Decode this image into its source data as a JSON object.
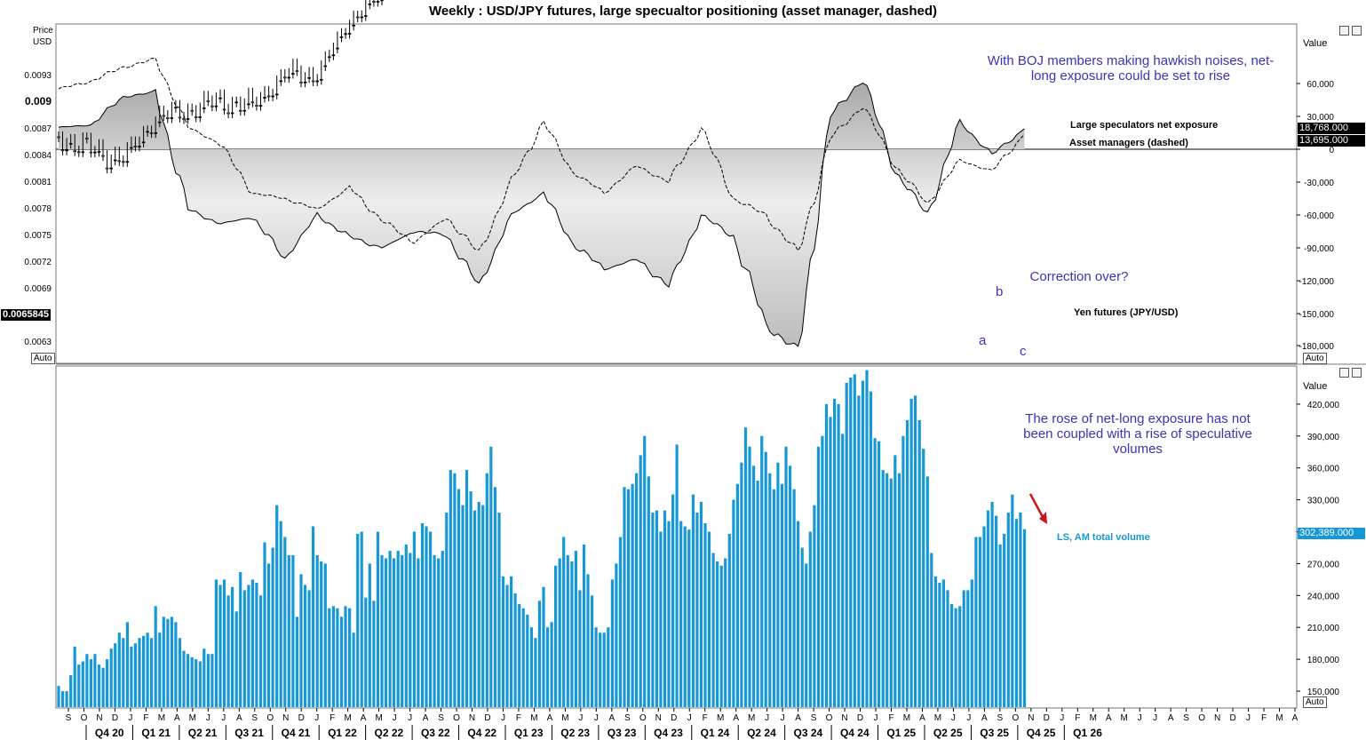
{
  "title": "Weekly : USD/JPY futures, large specualtor positioning (asset manager, dashed)",
  "colors": {
    "volume_bar": "#1798d6",
    "arrow": "#c8161d",
    "annotation": "#3a33b8",
    "tag_black": "#000000",
    "tag_blue": "#1798d6"
  },
  "top_panel": {
    "left_axis_title": [
      "Price",
      "USD"
    ],
    "left_ticks": [
      "0.0093",
      "0.009",
      "0.0087",
      "0.0084",
      "0.0081",
      "0.0078",
      "0.0075",
      "0.0072",
      "0.0069",
      "0.0063"
    ],
    "right_axis_title": "Value",
    "right_ticks": [
      "60,000",
      "30,000",
      "0",
      "-30,000",
      "-60,000",
      "-90,000",
      "-120,000",
      "-150,000",
      "-180,000"
    ],
    "price_tag": "0.0065845",
    "ls_tag": "18,768.000",
    "am_tag": "13,695.000",
    "auto_label": "Auto",
    "annotation": "With BOJ members making hawkish noises, net-long exposure could be set to rise",
    "question": "Correction over?",
    "label_ls": "Large speculators net exposure",
    "label_am": "Asset managers (dashed)",
    "label_yen": "Yen futures (JPY/USD)",
    "wave_a": "a",
    "wave_b": "b",
    "wave_c": "c"
  },
  "bottom_panel": {
    "right_axis_title": "Value",
    "right_ticks": [
      "420,000",
      "390,000",
      "360,000",
      "330,000",
      "300,000",
      "270,000",
      "240,000",
      "210,000",
      "180,000",
      "150,000"
    ],
    "volume_tag": "302,389.000",
    "label_volume": "LS, AM total volume",
    "annotation": "The rose of net-long exposure has not been coupled with a rise of speculative volumes",
    "auto_label": "Auto"
  },
  "x_axis": {
    "months": [
      "S",
      "O",
      "N",
      "D",
      "J",
      "F",
      "M",
      "A",
      "M",
      "J",
      "J",
      "A",
      "S",
      "O",
      "N",
      "D",
      "J",
      "F",
      "M",
      "A",
      "M",
      "J",
      "J",
      "A",
      "S",
      "O",
      "N",
      "D",
      "J",
      "F",
      "M",
      "A",
      "M",
      "J",
      "J",
      "A",
      "S",
      "O",
      "N",
      "D",
      "J",
      "F",
      "M",
      "A",
      "M",
      "J",
      "J",
      "A",
      "S",
      "O",
      "N",
      "D",
      "J",
      "F",
      "M",
      "A",
      "M",
      "J",
      "J",
      "A",
      "S",
      "O",
      "N",
      "D",
      "J",
      "F",
      "M",
      "A",
      "M",
      "J",
      "J",
      "A",
      "S",
      "O",
      "N",
      "D",
      "J",
      "F",
      "M",
      "A"
    ],
    "quarters": [
      "Q4 20",
      "Q1 21",
      "Q2 21",
      "Q3 21",
      "Q4 21",
      "Q1 22",
      "Q2 22",
      "Q3 22",
      "Q4 22",
      "Q1 23",
      "Q2 23",
      "Q3 23",
      "Q4 23",
      "Q1 24",
      "Q2 24",
      "Q3 24",
      "Q4 24",
      "Q1 25",
      "Q2 25",
      "Q3 25",
      "Q4 25",
      "Q1 26"
    ]
  },
  "chart_data": [
    {
      "type": "line",
      "title": "Weekly : USD/JPY futures, large specualtor positioning (asset manager, dashed)",
      "x": [
        "2020-09",
        "2020-11",
        "2021-01",
        "2021-03",
        "2021-05",
        "2021-07",
        "2021-09",
        "2021-11",
        "2022-01",
        "2022-03",
        "2022-05",
        "2022-07",
        "2022-09",
        "2022-11",
        "2023-01",
        "2023-03",
        "2023-05",
        "2023-07",
        "2023-09",
        "2023-11",
        "2024-01",
        "2024-03",
        "2024-05",
        "2024-07",
        "2024-08",
        "2024-09",
        "2024-10",
        "2024-11",
        "2024-12",
        "2025-01",
        "2025-02"
      ],
      "y_right_label": "Value",
      "series": [
        {
          "name": "Large speculators net exposure",
          "axis": "right",
          "values": [
            20000,
            22000,
            48000,
            52000,
            -55000,
            -68000,
            -62000,
            -100000,
            -60000,
            -80000,
            -90000,
            -75000,
            -78000,
            -125000,
            -60000,
            -40000,
            -85000,
            -110000,
            -100000,
            -125000,
            -60000,
            -80000,
            -160000,
            -185000,
            30000,
            65000,
            -20000,
            -60000,
            25000,
            -5000,
            18768
          ]
        },
        {
          "name": "Asset managers (dashed)",
          "axis": "right",
          "values": [
            55000,
            62000,
            75000,
            82000,
            20000,
            5000,
            -40000,
            -45000,
            -55000,
            -35000,
            -65000,
            -85000,
            -62000,
            -95000,
            -30000,
            25000,
            -20000,
            -40000,
            -15000,
            -30000,
            20000,
            -45000,
            -60000,
            -95000,
            10000,
            40000,
            -15000,
            -50000,
            -10000,
            -20000,
            13695
          ]
        },
        {
          "name": "Yen futures (JPY/USD)",
          "axis": "left",
          "values": [
            0.0094,
            0.00955,
            0.00965,
            0.0092,
            0.0091,
            0.009,
            0.00905,
            0.0087,
            0.0087,
            0.0081,
            0.0078,
            0.0073,
            0.0073,
            0.0069,
            0.0077,
            0.0075,
            0.0073,
            0.007,
            0.0069,
            0.0067,
            0.007,
            0.0068,
            0.0065,
            0.0063,
            0.007,
            0.007,
            0.0067,
            0.0065,
            0.00665,
            0.0064,
            0.0065845
          ]
        }
      ]
    },
    {
      "type": "bar",
      "y_right_label": "Value",
      "ylim": [
        135000,
        445000
      ],
      "series": [
        {
          "name": "LS, AM total volume",
          "values": [
            155000,
            150000,
            150000,
            165000,
            192000,
            175000,
            178000,
            185000,
            180000,
            185000,
            175000,
            172000,
            180000,
            190000,
            195000,
            205000,
            200000,
            215000,
            192000,
            195000,
            200000,
            202000,
            205000,
            200000,
            230000,
            205000,
            220000,
            218000,
            220000,
            215000,
            200000,
            188000,
            185000,
            182000,
            180000,
            178000,
            190000,
            185000,
            185000,
            255000,
            250000,
            255000,
            240000,
            248000,
            225000,
            262000,
            245000,
            250000,
            255000,
            252000,
            240000,
            290000,
            270000,
            285000,
            325000,
            310000,
            295000,
            278000,
            278000,
            220000,
            260000,
            250000,
            245000,
            305000,
            278000,
            272000,
            270000,
            228000,
            230000,
            228000,
            220000,
            230000,
            228000,
            205000,
            298000,
            300000,
            238000,
            270000,
            235000,
            300000,
            278000,
            275000,
            282000,
            275000,
            282000,
            278000,
            288000,
            280000,
            300000,
            275000,
            308000,
            305000,
            300000,
            278000,
            275000,
            282000,
            318000,
            358000,
            355000,
            340000,
            325000,
            358000,
            338000,
            320000,
            328000,
            325000,
            355000,
            380000,
            342000,
            318000,
            258000,
            250000,
            258000,
            242000,
            232000,
            228000,
            222000,
            210000,
            200000,
            235000,
            248000,
            210000,
            215000,
            268000,
            275000,
            295000,
            278000,
            272000,
            282000,
            245000,
            288000,
            260000,
            240000,
            210000,
            205000,
            205000,
            210000,
            255000,
            270000,
            295000,
            342000,
            340000,
            345000,
            355000,
            372000,
            390000,
            352000,
            318000,
            320000,
            300000,
            320000,
            310000,
            335000,
            382000,
            310000,
            305000,
            302000,
            335000,
            318000,
            328000,
            308000,
            300000,
            280000,
            272000,
            268000,
            275000,
            298000,
            330000,
            345000,
            365000,
            398000,
            380000,
            362000,
            348000,
            390000,
            375000,
            355000,
            340000,
            365000,
            345000,
            380000,
            362000,
            340000,
            310000,
            285000,
            270000,
            300000,
            325000,
            380000,
            390000,
            420000,
            408000,
            425000,
            420000,
            392000,
            440000,
            445000,
            448000,
            428000,
            442000,
            452000,
            432000,
            388000,
            385000,
            358000,
            355000,
            350000,
            372000,
            355000,
            390000,
            405000,
            425000,
            428000,
            405000,
            378000,
            352000,
            280000,
            258000,
            252000,
            255000,
            245000,
            232000,
            228000,
            230000,
            245000,
            245000,
            255000,
            295000,
            295000,
            305000,
            320000,
            328000,
            315000,
            288000,
            298000,
            318000,
            335000,
            312000,
            318000,
            302389
          ]
        }
      ]
    }
  ]
}
